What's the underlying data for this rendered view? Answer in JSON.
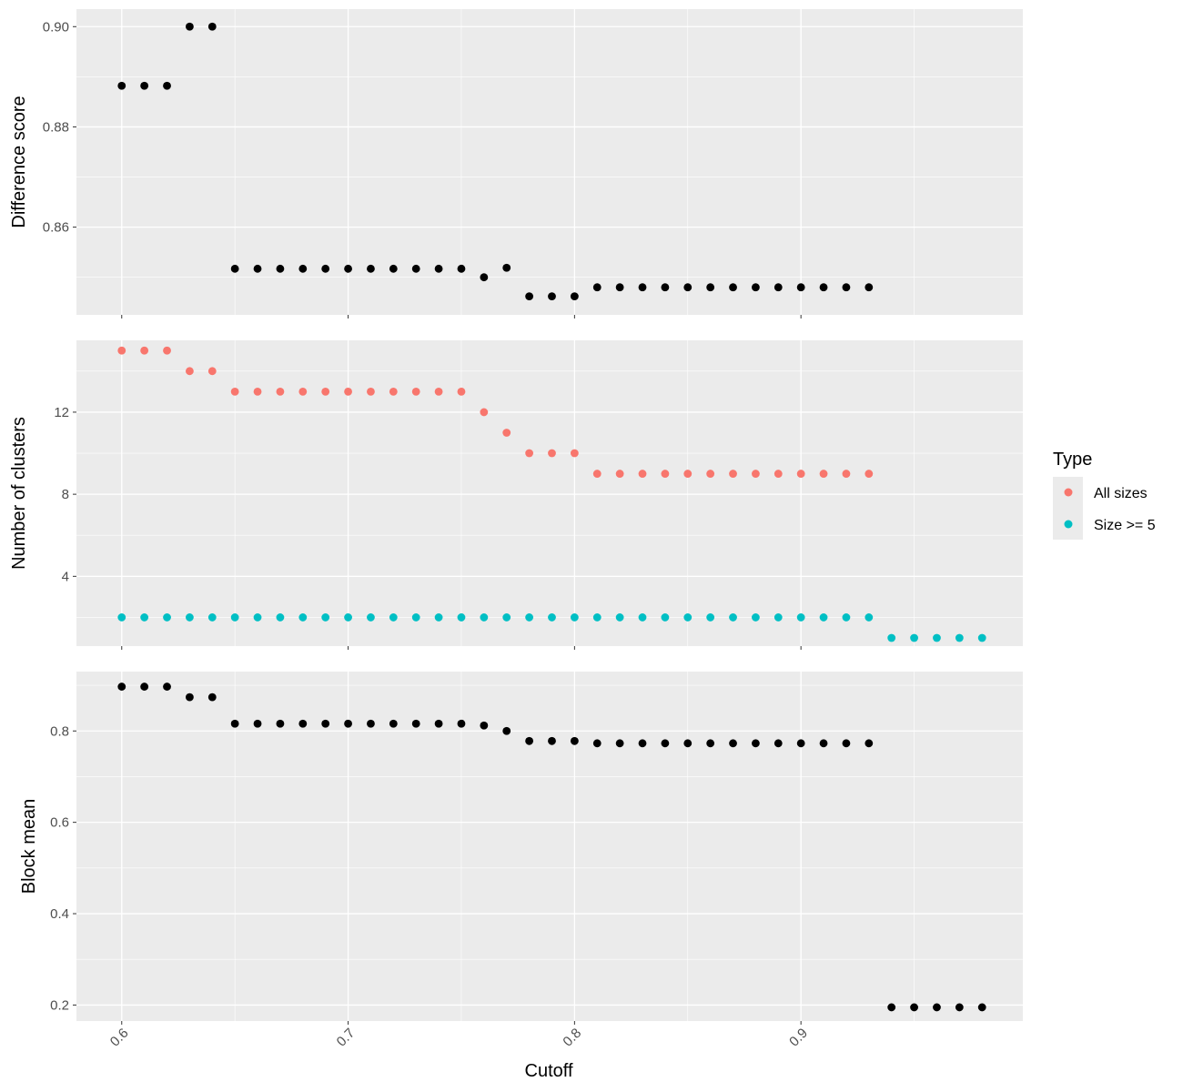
{
  "chart_data": {
    "type": "scatter",
    "xlabel": "Cutoff",
    "x_ticks": [
      0.6,
      0.7,
      0.8,
      0.9
    ],
    "x_tick_labels": [
      "0.6",
      "0.7",
      "0.8",
      "0.9"
    ],
    "xlim": [
      0.58,
      0.998
    ],
    "grid": true,
    "legend_position": "right",
    "legend": {
      "title": "Type",
      "entries": [
        {
          "label": "All sizes",
          "color": "#F8766D"
        },
        {
          "label": "Size >= 5",
          "color": "#00BFC4"
        }
      ]
    },
    "panels": [
      {
        "ylabel": "Difference score",
        "ylim": [
          0.8425,
          0.9035
        ],
        "y_ticks": [
          0.86,
          0.88,
          0.9
        ],
        "y_tick_labels": [
          "0.86",
          "0.88",
          "0.90"
        ],
        "y_minor": [
          0.85,
          0.87,
          0.89
        ],
        "series": [
          {
            "color": "#000000",
            "x": [
              0.6,
              0.61,
              0.62,
              0.63,
              0.64,
              0.65,
              0.66,
              0.67,
              0.68,
              0.69,
              0.7,
              0.71,
              0.72,
              0.73,
              0.74,
              0.75,
              0.76,
              0.77,
              0.78,
              0.79,
              0.8,
              0.81,
              0.82,
              0.83,
              0.84,
              0.85,
              0.86,
              0.87,
              0.88,
              0.89,
              0.9,
              0.91,
              0.92,
              0.93
            ],
            "y": [
              0.8882,
              0.8882,
              0.8882,
              0.9,
              0.9,
              0.8517,
              0.8517,
              0.8517,
              0.8517,
              0.8517,
              0.8517,
              0.8517,
              0.8517,
              0.8517,
              0.8517,
              0.8517,
              0.85,
              0.8519,
              0.8462,
              0.8462,
              0.8462,
              0.848,
              0.848,
              0.848,
              0.848,
              0.848,
              0.848,
              0.848,
              0.848,
              0.848,
              0.848,
              0.848,
              0.848,
              0.848
            ]
          }
        ]
      },
      {
        "ylabel": "Number of clusters",
        "ylim": [
          0.6,
          15.5
        ],
        "y_ticks": [
          4,
          8,
          12
        ],
        "y_tick_labels": [
          "4",
          "8",
          "12"
        ],
        "y_minor": [
          2,
          6,
          10,
          14
        ],
        "series": [
          {
            "name": "All sizes",
            "color": "#F8766D",
            "x": [
              0.6,
              0.61,
              0.62,
              0.63,
              0.64,
              0.65,
              0.66,
              0.67,
              0.68,
              0.69,
              0.7,
              0.71,
              0.72,
              0.73,
              0.74,
              0.75,
              0.76,
              0.77,
              0.78,
              0.79,
              0.8,
              0.81,
              0.82,
              0.83,
              0.84,
              0.85,
              0.86,
              0.87,
              0.88,
              0.89,
              0.9,
              0.91,
              0.92,
              0.93
            ],
            "y": [
              15,
              15,
              15,
              14,
              14,
              13,
              13,
              13,
              13,
              13,
              13,
              13,
              13,
              13,
              13,
              13,
              12,
              11,
              10,
              10,
              10,
              9,
              9,
              9,
              9,
              9,
              9,
              9,
              9,
              9,
              9,
              9,
              9,
              9
            ]
          },
          {
            "name": "Size >= 5",
            "color": "#00BFC4",
            "x": [
              0.6,
              0.61,
              0.62,
              0.63,
              0.64,
              0.65,
              0.66,
              0.67,
              0.68,
              0.69,
              0.7,
              0.71,
              0.72,
              0.73,
              0.74,
              0.75,
              0.76,
              0.77,
              0.78,
              0.79,
              0.8,
              0.81,
              0.82,
              0.83,
              0.84,
              0.85,
              0.86,
              0.87,
              0.88,
              0.89,
              0.9,
              0.91,
              0.92,
              0.93,
              0.94,
              0.95,
              0.96,
              0.97,
              0.98
            ],
            "y": [
              2,
              2,
              2,
              2,
              2,
              2,
              2,
              2,
              2,
              2,
              2,
              2,
              2,
              2,
              2,
              2,
              2,
              2,
              2,
              2,
              2,
              2,
              2,
              2,
              2,
              2,
              2,
              2,
              2,
              2,
              2,
              2,
              2,
              2,
              1,
              1,
              1,
              1,
              1
            ]
          }
        ]
      },
      {
        "ylabel": "Block mean",
        "ylim": [
          0.165,
          0.93
        ],
        "y_ticks": [
          0.2,
          0.4,
          0.6,
          0.8
        ],
        "y_tick_labels": [
          "0.2",
          "0.4",
          "0.6",
          "0.8"
        ],
        "y_minor": [
          0.3,
          0.5,
          0.7,
          0.9
        ],
        "series": [
          {
            "color": "#000000",
            "x": [
              0.6,
              0.61,
              0.62,
              0.63,
              0.64,
              0.65,
              0.66,
              0.67,
              0.68,
              0.69,
              0.7,
              0.71,
              0.72,
              0.73,
              0.74,
              0.75,
              0.76,
              0.77,
              0.78,
              0.79,
              0.8,
              0.81,
              0.82,
              0.83,
              0.84,
              0.85,
              0.86,
              0.87,
              0.88,
              0.89,
              0.9,
              0.91,
              0.92,
              0.93,
              0.94,
              0.95,
              0.96,
              0.97,
              0.98
            ],
            "y": [
              0.897,
              0.897,
              0.897,
              0.874,
              0.874,
              0.816,
              0.816,
              0.816,
              0.816,
              0.816,
              0.816,
              0.816,
              0.816,
              0.816,
              0.816,
              0.816,
              0.812,
              0.8,
              0.778,
              0.778,
              0.778,
              0.773,
              0.773,
              0.773,
              0.773,
              0.773,
              0.773,
              0.773,
              0.773,
              0.773,
              0.773,
              0.773,
              0.773,
              0.773,
              0.195,
              0.195,
              0.195,
              0.195,
              0.195
            ]
          }
        ]
      }
    ]
  }
}
